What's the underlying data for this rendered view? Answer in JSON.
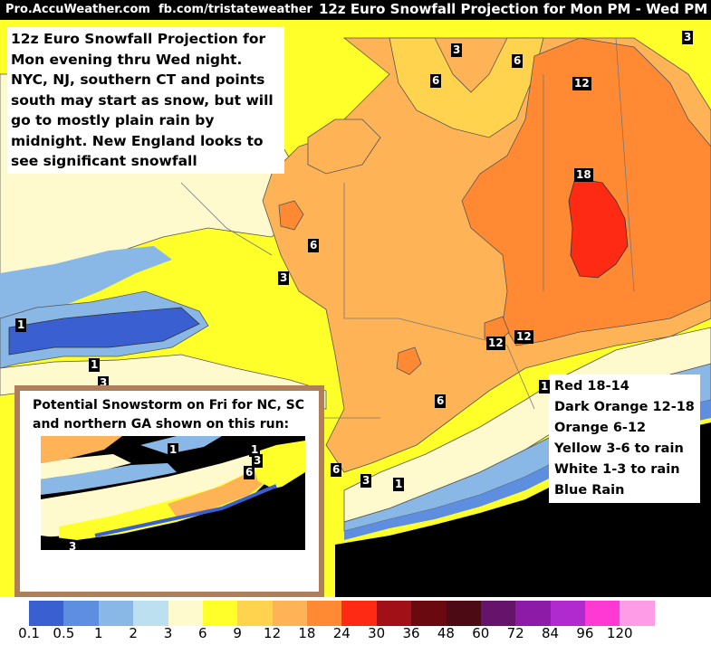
{
  "header": {
    "source": "Pro.AccuWeather.com",
    "facebook": "fb.com/tristateweather",
    "title": "12z Euro Snowfall Projection for Mon PM - Wed PM"
  },
  "description": "12z Euro Snowfall Projection for Mon evening thru Wed night. NYC, NJ, southern CT and points south may start as snow, but will go to mostly plain rain by midnight. New England looks to see significant snowfall",
  "legend_notes": [
    "Red 18-14",
    "Dark Orange 12-18",
    "Orange 6-12",
    "Yellow 3-6 to rain",
    "White 1-3 to rain",
    "Blue Rain"
  ],
  "inset": {
    "title": "Potential Snowstorm on Fri for NC, SC and northern GA shown on this run:",
    "labels": [
      "1",
      "1",
      "3",
      "6",
      "3"
    ]
  },
  "contour_labels": [
    "3",
    "3",
    "6",
    "12",
    "18",
    "6",
    "6",
    "3",
    "12",
    "12",
    "1",
    "1",
    "3",
    "6",
    "6",
    "3",
    "1",
    "1"
  ],
  "color_scale": {
    "colors": [
      "#3a5fd0",
      "#5d8ee0",
      "#8ab8e6",
      "#bde0f0",
      "#fffacd",
      "#ffff2a",
      "#ffd34d",
      "#ffb357",
      "#ff8a33",
      "#ff2a14",
      "#a01016",
      "#6a0a10",
      "#4b0a14",
      "#66136c",
      "#8c1ca8",
      "#b02ad0",
      "#ff3ad2",
      "#ff9ce8",
      "#ffffff"
    ],
    "values": [
      "0.1",
      "0.5",
      "1",
      "2",
      "3",
      "6",
      "9",
      "12",
      "18",
      "24",
      "30",
      "36",
      "48",
      "60",
      "72",
      "84",
      "96",
      "120"
    ]
  }
}
